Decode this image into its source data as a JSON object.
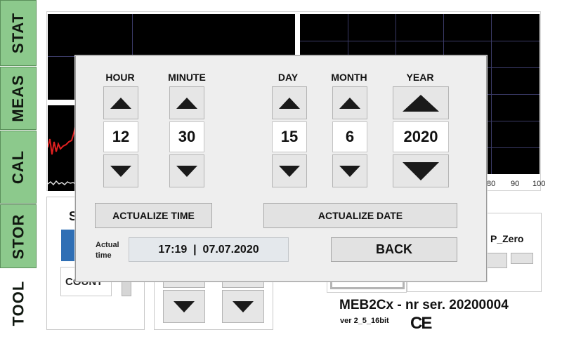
{
  "sidebar": {
    "tabs": [
      {
        "label": "STAT"
      },
      {
        "label": "MEAS"
      },
      {
        "label": "CAL"
      },
      {
        "label": "STOR"
      },
      {
        "label": "TOOL"
      }
    ]
  },
  "background": {
    "axis_ticks": [
      "80",
      "90",
      "100"
    ],
    "peek_s": "S",
    "peek_count": "COUNT",
    "p_zero_label": "P_Zero"
  },
  "dialog": {
    "hour_label": "HOUR",
    "minute_label": "MINUTE",
    "day_label": "DAY",
    "month_label": "MONTH",
    "year_label": "YEAR",
    "hour_value": "12",
    "minute_value": "30",
    "day_value": "15",
    "month_value": "6",
    "year_value": "2020",
    "actualize_time_label": "ACTUALIZE TIME",
    "actualize_date_label": "ACTUALIZE DATE",
    "actual_time_label_1": "Actual",
    "actual_time_label_2": "time",
    "actual_time_value": "17:19  |  07.07.2020",
    "back_label": "BACK"
  },
  "footer": {
    "device_title": "MEB2Cx - nr ser. 20200004",
    "version": "ver 2_5_16bit",
    "ce_mark": "CE"
  },
  "colors": {
    "tab_green": "#8cc98c",
    "plot_bg": "#000000",
    "trace_red": "#e02020",
    "dialog_bg": "#eeeeee",
    "readout_bg": "#e4e8ec"
  },
  "icons": {
    "up": "triangle-up-icon",
    "down": "triangle-down-icon"
  }
}
